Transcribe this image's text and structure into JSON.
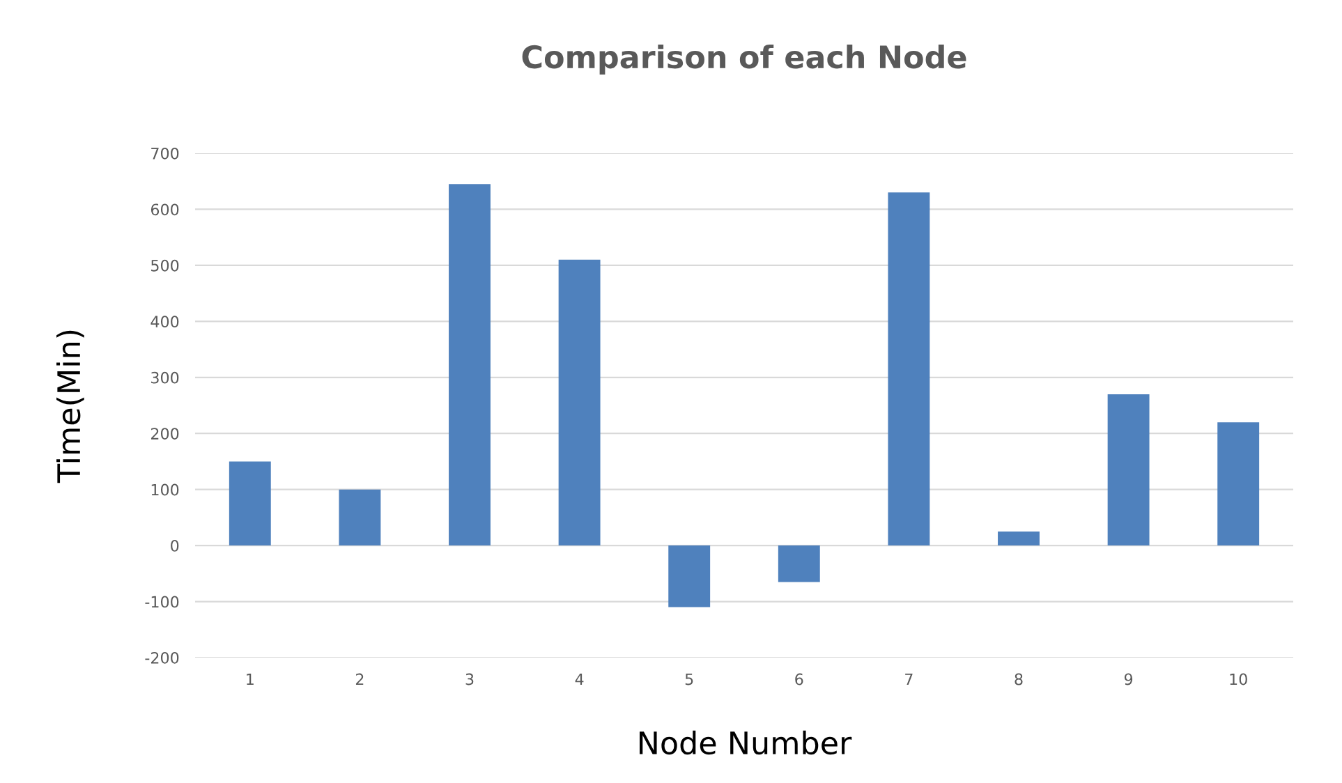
{
  "chart_data": {
    "type": "bar",
    "title": "Comparison of each Node",
    "xlabel": "Node Number",
    "ylabel": "Time(Min)",
    "categories": [
      "1",
      "2",
      "3",
      "4",
      "5",
      "6",
      "7",
      "8",
      "9",
      "10"
    ],
    "values": [
      150,
      100,
      645,
      510,
      -110,
      -65,
      630,
      25,
      270,
      220
    ],
    "color": "#4f81bd",
    "ylim": [
      -200,
      700
    ],
    "yticks": [
      -200,
      -100,
      0,
      100,
      200,
      300,
      400,
      500,
      600,
      700
    ],
    "grid": "y"
  }
}
